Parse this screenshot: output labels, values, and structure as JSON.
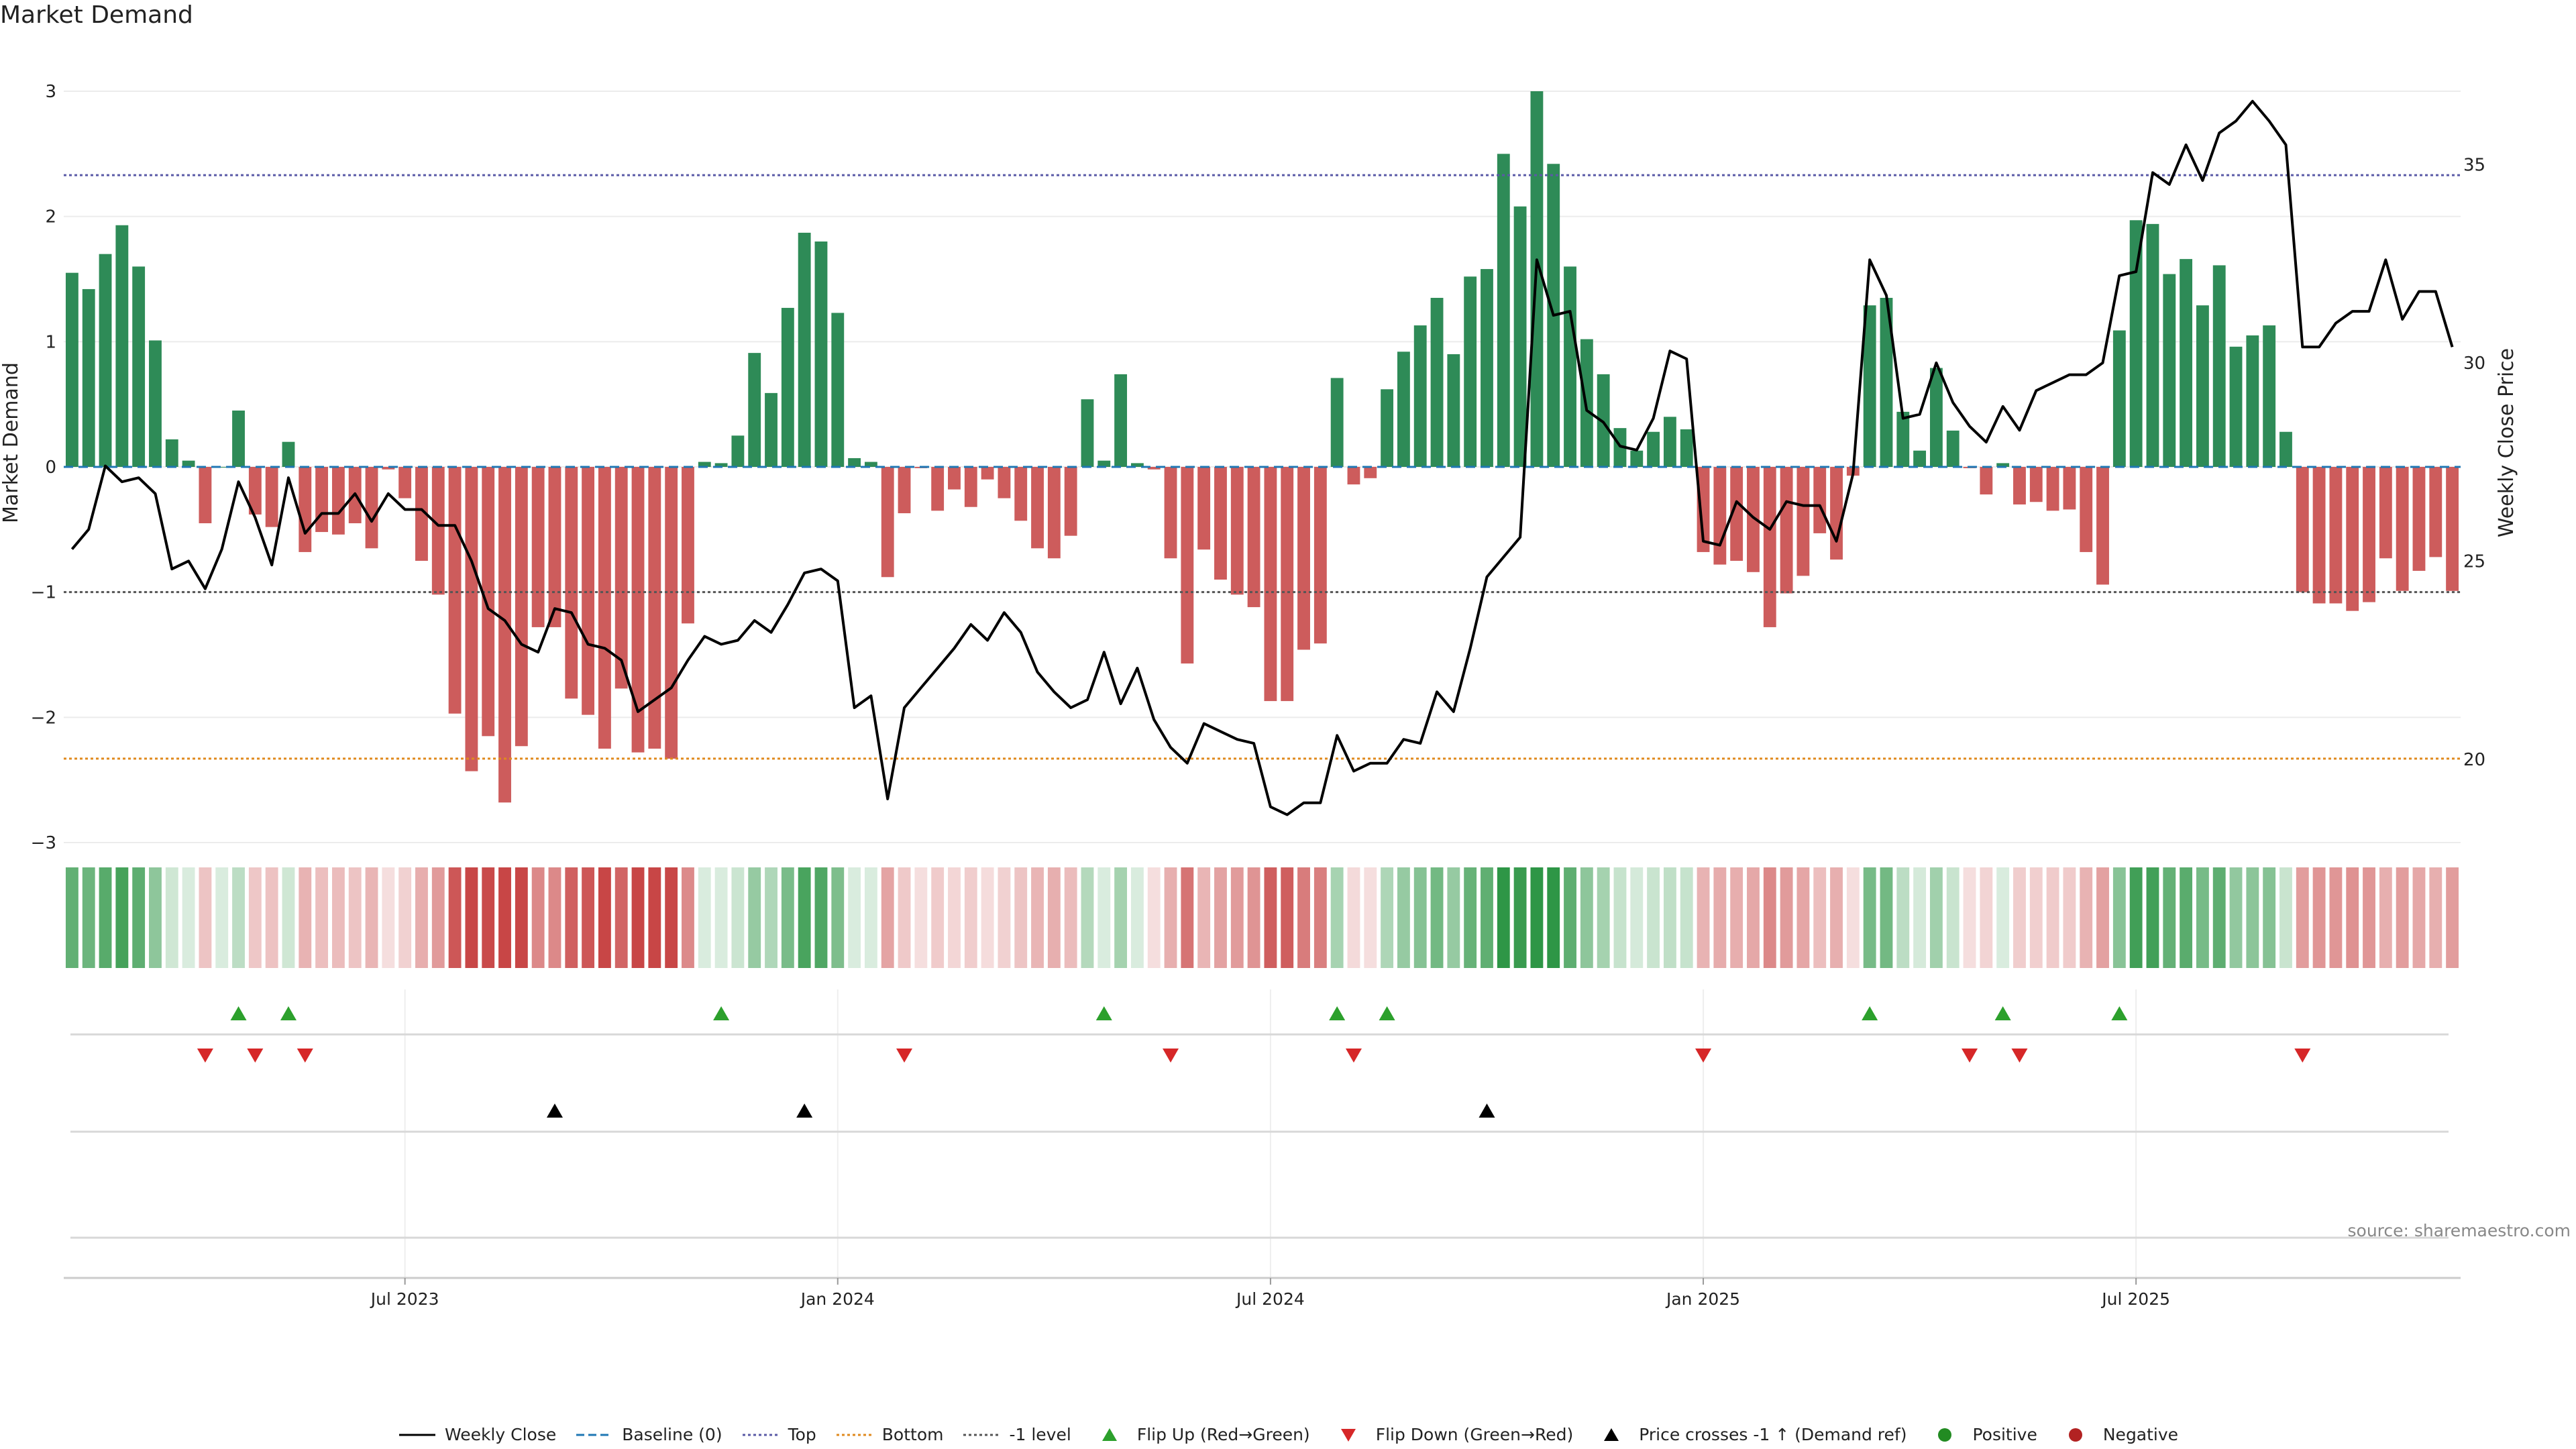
{
  "chart_data": {
    "type": "bar",
    "title": "Market Demand",
    "ylabel": "Market Demand",
    "y2label": "Weekly Close Price",
    "ylim": [
      -3.3,
      3.3
    ],
    "y2lim": [
      16.95,
      37.8
    ],
    "yticks": [
      3,
      2,
      1,
      0,
      -1,
      -2,
      -3
    ],
    "ytick_labels": [
      "3",
      "2",
      "1",
      "0",
      "−1",
      "−2",
      "−3"
    ],
    "y2ticks": [
      35,
      30,
      25,
      20
    ],
    "y2tick_labels": [
      "35",
      "30",
      "25",
      "20"
    ],
    "xticks": [
      {
        "label": "Jul 2023",
        "week": 20
      },
      {
        "label": "Jan 2024",
        "week": 46
      },
      {
        "label": "Jul 2024",
        "week": 72
      },
      {
        "label": "Jan 2025",
        "week": 98
      },
      {
        "label": "Jul 2025",
        "week": 124
      }
    ],
    "reference_lines": [
      {
        "name": "Top",
        "value": 2.33,
        "color": "#5a5aa6",
        "style": "dotted"
      },
      {
        "name": "Bottom",
        "value": -2.33,
        "color": "#e08a1e",
        "style": "dotted"
      },
      {
        "name": "-1 level",
        "value": -1,
        "color": "#555555",
        "style": "dotted"
      },
      {
        "name": "Baseline (0)",
        "value": 0,
        "color": "#1f77b4",
        "style": "dashed"
      }
    ],
    "demand": [
      1.55,
      1.42,
      1.7,
      1.93,
      1.6,
      1.01,
      0.22,
      0.05,
      -0.45,
      0.0,
      0.45,
      -0.38,
      -0.48,
      0.2,
      -0.68,
      -0.52,
      -0.54,
      -0.45,
      -0.65,
      -0.02,
      -0.25,
      -0.75,
      -1.02,
      -1.97,
      -2.43,
      -2.15,
      -2.68,
      -2.23,
      -1.28,
      -1.28,
      -1.85,
      -1.98,
      -2.25,
      -1.77,
      -2.28,
      -2.25,
      -2.33,
      -1.25,
      0.04,
      0.03,
      0.25,
      0.91,
      0.59,
      1.27,
      1.87,
      1.8,
      1.23,
      0.07,
      0.04,
      -0.88,
      -0.37,
      -0.01,
      -0.35,
      -0.18,
      -0.32,
      -0.1,
      -0.25,
      -0.43,
      -0.65,
      -0.73,
      -0.55,
      0.54,
      0.05,
      0.74,
      0.03,
      -0.02,
      -0.73,
      -1.57,
      -0.66,
      -0.9,
      -1.02,
      -1.12,
      -1.87,
      -1.87,
      -1.46,
      -1.41,
      0.71,
      -0.14,
      -0.09,
      0.62,
      0.92,
      1.13,
      1.35,
      0.9,
      1.52,
      1.58,
      2.5,
      2.08,
      3.0,
      2.42,
      1.6,
      1.02,
      0.74,
      0.31,
      0.13,
      0.28,
      0.4,
      0.3,
      -0.68,
      -0.78,
      -0.75,
      -0.84,
      -1.28,
      -1.01,
      -0.87,
      -0.53,
      -0.74,
      -0.07,
      1.29,
      1.35,
      0.44,
      0.13,
      0.79,
      0.29,
      -0.01,
      -0.22,
      0.03,
      -0.3,
      -0.28,
      -0.35,
      -0.34,
      -0.68,
      -0.94,
      1.09,
      1.97,
      1.94,
      1.54,
      1.66,
      1.29,
      1.61,
      0.96,
      1.05,
      1.13,
      0.28,
      -1.0,
      -1.09,
      -1.09,
      -1.15,
      -1.08,
      -0.73,
      -0.99,
      -0.83,
      -0.72,
      -0.99
    ],
    "weekly_close": [
      25.3,
      25.8,
      27.4,
      27.0,
      27.1,
      26.7,
      24.8,
      25.0,
      24.3,
      25.3,
      27.0,
      26.1,
      24.9,
      27.1,
      25.7,
      26.2,
      26.2,
      26.7,
      26.0,
      26.7,
      26.3,
      26.3,
      25.9,
      25.9,
      25.0,
      23.8,
      23.5,
      22.9,
      22.7,
      23.8,
      23.7,
      22.9,
      22.8,
      22.5,
      21.2,
      21.5,
      21.8,
      22.5,
      23.1,
      22.9,
      23.0,
      23.5,
      23.2,
      23.9,
      24.7,
      24.8,
      24.5,
      21.3,
      21.6,
      19.0,
      21.3,
      21.8,
      22.3,
      22.8,
      23.4,
      23.0,
      23.7,
      23.2,
      22.2,
      21.7,
      21.3,
      21.5,
      22.7,
      21.4,
      22.3,
      21.0,
      20.3,
      19.9,
      20.9,
      20.7,
      20.5,
      20.4,
      18.8,
      18.6,
      18.9,
      18.9,
      20.6,
      19.7,
      19.9,
      19.9,
      20.5,
      20.4,
      21.7,
      21.2,
      22.8,
      24.6,
      25.1,
      25.6,
      32.6,
      31.2,
      31.3,
      28.8,
      28.5,
      27.9,
      27.8,
      28.6,
      30.3,
      30.1,
      25.5,
      25.4,
      26.5,
      26.1,
      25.8,
      26.5,
      26.4,
      26.4,
      25.5,
      27.2,
      32.6,
      31.7,
      28.6,
      28.7,
      30.0,
      29.0,
      28.4,
      28.0,
      28.9,
      28.3,
      29.3,
      29.5,
      29.7,
      29.7,
      30.0,
      32.2,
      32.3,
      34.8,
      34.5,
      35.5,
      34.6,
      35.8,
      36.1,
      36.6,
      36.1,
      35.5,
      30.4,
      30.4,
      31.0,
      31.3,
      31.3,
      32.6,
      31.1,
      31.8,
      31.8,
      30.4
    ],
    "flip_up_weeks": [
      10,
      13,
      39,
      62,
      76,
      79,
      108,
      116,
      123
    ],
    "flip_down_weeks": [
      8,
      11,
      14,
      50,
      66,
      77,
      98,
      114,
      117,
      134
    ],
    "price_cross_weeks": [
      29,
      44,
      85
    ],
    "colors": {
      "positive": "#2e8b57",
      "negative": "#cd5c5c",
      "line": "#000000",
      "flip_up": "#2ca02c",
      "flip_down": "#d62728",
      "cross": "#000000"
    }
  },
  "legend": [
    {
      "label": "Weekly Close",
      "symbol": "line",
      "color": "#000000"
    },
    {
      "label": "Baseline (0)",
      "symbol": "dashed",
      "color": "#1f77b4"
    },
    {
      "label": "Top",
      "symbol": "dotted",
      "color": "#5a5aa6"
    },
    {
      "label": "Bottom",
      "symbol": "dotted",
      "color": "#e08a1e"
    },
    {
      "label": "-1 level",
      "symbol": "dotted",
      "color": "#555555"
    },
    {
      "label": "Flip Up (Red→Green)",
      "symbol": "tri-up",
      "color": "#2ca02c"
    },
    {
      "label": "Flip Down (Green→Red)",
      "symbol": "tri-down",
      "color": "#d62728"
    },
    {
      "label": "Price crosses -1 ↑ (Demand ref)",
      "symbol": "tri-up",
      "color": "#000000"
    },
    {
      "label": "Positive",
      "symbol": "dot",
      "color": "#228b22"
    },
    {
      "label": "Negative",
      "symbol": "dot",
      "color": "#b22222"
    }
  ],
  "source_text": "source: sharemaestro.com"
}
